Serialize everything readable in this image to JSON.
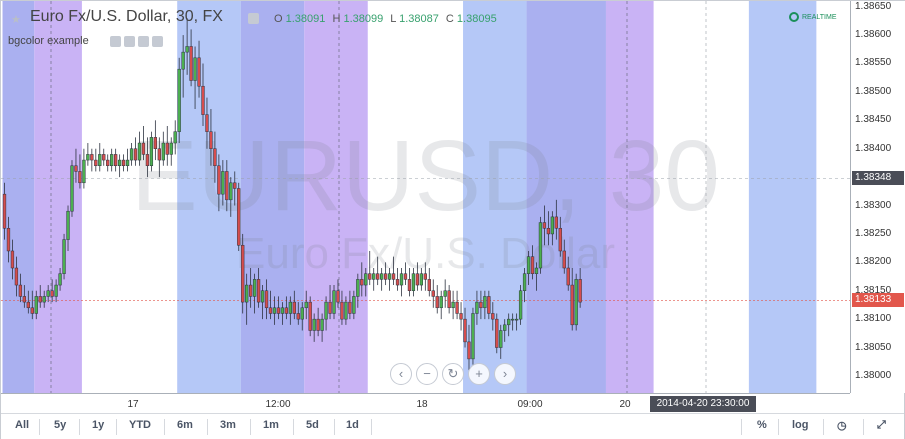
{
  "legend": {
    "title": "Euro Fx/U.S. Dollar, 30, FX",
    "o_label": "O",
    "o_value": "1.38091",
    "h_label": "H",
    "h_value": "1.38099",
    "l_label": "L",
    "l_value": "1.38087",
    "c_label": "C",
    "c_value": "1.38095"
  },
  "study": {
    "label": "bgcolor example"
  },
  "realtime": {
    "label": "REALTIME"
  },
  "watermark": {
    "symbol": "EURUSD, 30",
    "description": "Euro Fx/U.S. Dollar"
  },
  "price_axis": {
    "ticks": [
      "1.38650",
      "1.38600",
      "1.38550",
      "1.38500",
      "1.38450",
      "1.38400",
      "1.38300",
      "1.38250",
      "1.38200",
      "1.38150",
      "1.38100",
      "1.38050",
      "1.38000"
    ],
    "crosshair_price": "1.38348",
    "last_price": "1.38133"
  },
  "time_axis": {
    "ticks": [
      "17",
      "12:00",
      "18",
      "09:00",
      "20"
    ],
    "crosshair_time": "2014-04-20 23:30:00"
  },
  "range_bar": {
    "buttons": [
      "All",
      "5y",
      "1y",
      "YTD",
      "6m",
      "3m",
      "1m",
      "5d",
      "1d"
    ],
    "percent": "%",
    "log": "log"
  },
  "colors": {
    "up": "#4caf50",
    "down": "#d64d4d",
    "bg_blue": "#b5c8f7",
    "bg_purple": "#c9b3f5",
    "bg_indigo": "#aab0f0",
    "crosshair_badge": "#4a4d57",
    "last_price_badge": "#e2574c"
  },
  "chart_data": {
    "type": "candlestick",
    "price_range": [
      1.3797,
      1.3866
    ],
    "background_bands": [
      {
        "from": 0,
        "to": 8,
        "color": "indigo"
      },
      {
        "from": 8,
        "to": 20,
        "color": "purple"
      },
      {
        "from": 44,
        "to": 60,
        "color": "blue"
      },
      {
        "from": 60,
        "to": 76,
        "color": "indigo"
      },
      {
        "from": 76,
        "to": 92,
        "color": "purple"
      },
      {
        "from": 116,
        "to": 132,
        "color": "blue"
      },
      {
        "from": 132,
        "to": 152,
        "color": "indigo"
      },
      {
        "from": 152,
        "to": 164,
        "color": "purple"
      },
      {
        "from": 188,
        "to": 205,
        "color": "blue"
      }
    ],
    "candles": [
      [
        1.3832,
        1.3834,
        1.3824,
        1.3826
      ],
      [
        1.3826,
        1.3828,
        1.382,
        1.3822
      ],
      [
        1.3822,
        1.3824,
        1.3817,
        1.3819
      ],
      [
        1.3819,
        1.3821,
        1.3814,
        1.3816
      ],
      [
        1.3816,
        1.3818,
        1.3813,
        1.3814
      ],
      [
        1.3814,
        1.3816,
        1.3812,
        1.3813
      ],
      [
        1.3813,
        1.3815,
        1.3811,
        1.3812
      ],
      [
        1.3812,
        1.3815,
        1.381,
        1.3811
      ],
      [
        1.3811,
        1.3815,
        1.381,
        1.3814
      ],
      [
        1.3814,
        1.3816,
        1.3812,
        1.3813
      ],
      [
        1.3813,
        1.3815,
        1.3812,
        1.3814
      ],
      [
        1.3814,
        1.3816,
        1.3813,
        1.3815
      ],
      [
        1.3815,
        1.3817,
        1.3813,
        1.3814
      ],
      [
        1.3814,
        1.3817,
        1.3813,
        1.3816
      ],
      [
        1.3816,
        1.3819,
        1.3815,
        1.3818
      ],
      [
        1.3818,
        1.3825,
        1.3817,
        1.3824
      ],
      [
        1.3824,
        1.383,
        1.3822,
        1.3829
      ],
      [
        1.3829,
        1.3838,
        1.3828,
        1.3837
      ],
      [
        1.3837,
        1.384,
        1.3834,
        1.3836
      ],
      [
        1.3836,
        1.3839,
        1.3833,
        1.3834
      ],
      [
        1.3834,
        1.384,
        1.3833,
        1.3838
      ],
      [
        1.3838,
        1.3841,
        1.3837,
        1.3839
      ],
      [
        1.3839,
        1.384,
        1.3836,
        1.3838
      ],
      [
        1.3838,
        1.384,
        1.3836,
        1.3837
      ],
      [
        1.3837,
        1.3841,
        1.3836,
        1.3839
      ],
      [
        1.3839,
        1.384,
        1.3837,
        1.3838
      ],
      [
        1.3838,
        1.3839,
        1.3836,
        1.3837
      ],
      [
        1.3837,
        1.384,
        1.3836,
        1.3839
      ],
      [
        1.3839,
        1.384,
        1.3836,
        1.3837
      ],
      [
        1.3837,
        1.3839,
        1.3835,
        1.3838
      ],
      [
        1.3838,
        1.3839,
        1.3836,
        1.3837
      ],
      [
        1.3837,
        1.384,
        1.3836,
        1.3838
      ],
      [
        1.3838,
        1.3841,
        1.3837,
        1.384
      ],
      [
        1.384,
        1.3842,
        1.3837,
        1.3838
      ],
      [
        1.3838,
        1.3843,
        1.3837,
        1.3841
      ],
      [
        1.3841,
        1.3844,
        1.3838,
        1.3839
      ],
      [
        1.3839,
        1.3842,
        1.3835,
        1.3837
      ],
      [
        1.3837,
        1.3843,
        1.3836,
        1.3842
      ],
      [
        1.3842,
        1.3845,
        1.3838,
        1.384
      ],
      [
        1.384,
        1.3842,
        1.3835,
        1.3838
      ],
      [
        1.3838,
        1.3843,
        1.3837,
        1.3841
      ],
      [
        1.3841,
        1.3844,
        1.3837,
        1.3839
      ],
      [
        1.3839,
        1.3842,
        1.3837,
        1.3841
      ],
      [
        1.3841,
        1.3845,
        1.3839,
        1.3843
      ],
      [
        1.3843,
        1.3856,
        1.3841,
        1.3854
      ],
      [
        1.3854,
        1.386,
        1.3849,
        1.3857
      ],
      [
        1.3857,
        1.3863,
        1.3853,
        1.3858
      ],
      [
        1.3858,
        1.3861,
        1.3851,
        1.3852
      ],
      [
        1.3852,
        1.3858,
        1.3847,
        1.3856
      ],
      [
        1.3856,
        1.3859,
        1.3849,
        1.3851
      ],
      [
        1.3851,
        1.3855,
        1.3844,
        1.3846
      ],
      [
        1.3846,
        1.3849,
        1.384,
        1.3843
      ],
      [
        1.3843,
        1.3847,
        1.3837,
        1.384
      ],
      [
        1.384,
        1.3843,
        1.3834,
        1.3837
      ],
      [
        1.3837,
        1.3839,
        1.3829,
        1.3832
      ],
      [
        1.3832,
        1.3838,
        1.383,
        1.3836
      ],
      [
        1.3836,
        1.3838,
        1.3829,
        1.3831
      ],
      [
        1.3831,
        1.3835,
        1.3828,
        1.3834
      ],
      [
        1.3834,
        1.3836,
        1.383,
        1.3833
      ],
      [
        1.3833,
        1.3834,
        1.3822,
        1.3823
      ],
      [
        1.3823,
        1.3825,
        1.3811,
        1.3813
      ],
      [
        1.3813,
        1.3818,
        1.3809,
        1.3816
      ],
      [
        1.3816,
        1.3819,
        1.3812,
        1.3814
      ],
      [
        1.3814,
        1.3818,
        1.3811,
        1.3817
      ],
      [
        1.3817,
        1.3819,
        1.3812,
        1.3813
      ],
      [
        1.3813,
        1.3816,
        1.381,
        1.3815
      ],
      [
        1.3815,
        1.3817,
        1.381,
        1.3812
      ],
      [
        1.3812,
        1.3815,
        1.381,
        1.3811
      ],
      [
        1.3811,
        1.3814,
        1.3809,
        1.3812
      ],
      [
        1.3812,
        1.3814,
        1.381,
        1.3811
      ],
      [
        1.3811,
        1.3813,
        1.3809,
        1.3812
      ],
      [
        1.3812,
        1.3814,
        1.381,
        1.3811
      ],
      [
        1.3811,
        1.3814,
        1.3809,
        1.3813
      ],
      [
        1.3813,
        1.3815,
        1.381,
        1.3811
      ],
      [
        1.3811,
        1.3813,
        1.3809,
        1.381
      ],
      [
        1.381,
        1.3813,
        1.3808,
        1.3812
      ],
      [
        1.3812,
        1.3815,
        1.381,
        1.3813
      ],
      [
        1.3813,
        1.3814,
        1.3807,
        1.3808
      ],
      [
        1.3808,
        1.3811,
        1.3806,
        1.381
      ],
      [
        1.381,
        1.3812,
        1.3807,
        1.3808
      ],
      [
        1.3808,
        1.3811,
        1.3806,
        1.381
      ],
      [
        1.381,
        1.3814,
        1.3808,
        1.3813
      ],
      [
        1.3813,
        1.3816,
        1.381,
        1.3811
      ],
      [
        1.3811,
        1.3816,
        1.381,
        1.3815
      ],
      [
        1.3815,
        1.3817,
        1.3812,
        1.3813
      ],
      [
        1.3813,
        1.3815,
        1.3809,
        1.381
      ],
      [
        1.381,
        1.3814,
        1.3809,
        1.3813
      ],
      [
        1.3813,
        1.3815,
        1.381,
        1.3811
      ],
      [
        1.3811,
        1.3815,
        1.381,
        1.3814
      ],
      [
        1.3814,
        1.3818,
        1.3812,
        1.3817
      ],
      [
        1.3817,
        1.382,
        1.3814,
        1.3816
      ],
      [
        1.3816,
        1.3819,
        1.3814,
        1.3818
      ],
      [
        1.3818,
        1.3822,
        1.3816,
        1.3817
      ],
      [
        1.3817,
        1.3819,
        1.3815,
        1.3818
      ],
      [
        1.3818,
        1.3821,
        1.3816,
        1.3817
      ],
      [
        1.3817,
        1.3819,
        1.3815,
        1.3818
      ],
      [
        1.3818,
        1.382,
        1.3816,
        1.3817
      ],
      [
        1.3817,
        1.3819,
        1.3815,
        1.3818
      ],
      [
        1.3818,
        1.3821,
        1.3816,
        1.3817
      ],
      [
        1.3817,
        1.3819,
        1.3815,
        1.3816
      ],
      [
        1.3816,
        1.3819,
        1.3814,
        1.3818
      ],
      [
        1.3818,
        1.382,
        1.3816,
        1.3817
      ],
      [
        1.3817,
        1.3819,
        1.3814,
        1.3815
      ],
      [
        1.3815,
        1.3819,
        1.3814,
        1.3818
      ],
      [
        1.3818,
        1.382,
        1.3815,
        1.3816
      ],
      [
        1.3816,
        1.3819,
        1.3815,
        1.3818
      ],
      [
        1.3818,
        1.382,
        1.3815,
        1.3817
      ],
      [
        1.3817,
        1.3819,
        1.3814,
        1.3815
      ],
      [
        1.3815,
        1.3817,
        1.3812,
        1.3814
      ],
      [
        1.3814,
        1.3816,
        1.3811,
        1.3812
      ],
      [
        1.3812,
        1.3815,
        1.381,
        1.3814
      ],
      [
        1.3814,
        1.3817,
        1.3812,
        1.3815
      ],
      [
        1.3815,
        1.3816,
        1.3811,
        1.3812
      ],
      [
        1.3812,
        1.3815,
        1.381,
        1.3813
      ],
      [
        1.3813,
        1.3815,
        1.381,
        1.3811
      ],
      [
        1.3811,
        1.3813,
        1.3808,
        1.381
      ],
      [
        1.381,
        1.3812,
        1.3805,
        1.3806
      ],
      [
        1.3806,
        1.3809,
        1.3801,
        1.3803
      ],
      [
        1.3803,
        1.3812,
        1.3802,
        1.3811
      ],
      [
        1.3811,
        1.3815,
        1.3809,
        1.3813
      ],
      [
        1.3813,
        1.3815,
        1.381,
        1.3812
      ],
      [
        1.3812,
        1.3815,
        1.381,
        1.3814
      ],
      [
        1.3814,
        1.3815,
        1.381,
        1.3811
      ],
      [
        1.3811,
        1.3813,
        1.3808,
        1.381
      ],
      [
        1.381,
        1.3811,
        1.3804,
        1.3805
      ],
      [
        1.3805,
        1.3809,
        1.3803,
        1.3808
      ],
      [
        1.3808,
        1.381,
        1.3806,
        1.3809
      ],
      [
        1.3809,
        1.3811,
        1.3807,
        1.381
      ],
      [
        1.381,
        1.3811,
        1.3808,
        1.381
      ],
      [
        1.381,
        1.3811,
        1.3808,
        1.381
      ],
      [
        1.381,
        1.3816,
        1.3809,
        1.3815
      ],
      [
        1.3815,
        1.3819,
        1.3813,
        1.3818
      ],
      [
        1.3818,
        1.3822,
        1.3816,
        1.3821
      ],
      [
        1.3821,
        1.3823,
        1.3817,
        1.3818
      ],
      [
        1.3818,
        1.382,
        1.3815,
        1.3819
      ],
      [
        1.3819,
        1.3828,
        1.3818,
        1.3827
      ],
      [
        1.3827,
        1.383,
        1.3823,
        1.3826
      ],
      [
        1.3826,
        1.3829,
        1.3823,
        1.3825
      ],
      [
        1.3825,
        1.3829,
        1.3823,
        1.3828
      ],
      [
        1.3828,
        1.3831,
        1.3824,
        1.3826
      ],
      [
        1.3826,
        1.3828,
        1.3821,
        1.3822
      ],
      [
        1.3822,
        1.3824,
        1.3818,
        1.3819
      ],
      [
        1.3819,
        1.3821,
        1.3815,
        1.3816
      ],
      [
        1.3816,
        1.3819,
        1.3808,
        1.3809
      ],
      [
        1.3809,
        1.3818,
        1.3808,
        1.3817
      ],
      [
        1.3817,
        1.3819,
        1.3812,
        1.3813
      ]
    ]
  }
}
